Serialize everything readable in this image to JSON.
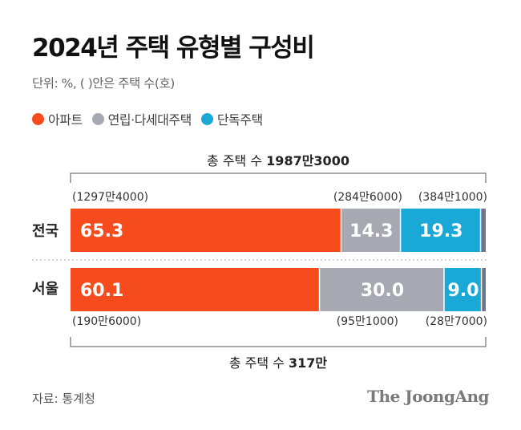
{
  "header": {
    "title": "2024년 주택 유형별 구성비",
    "unit": "단위: %, (  )안은 주택 수(호)"
  },
  "legend": [
    {
      "label": "아파트",
      "color": "#f64b1c"
    },
    {
      "label": "연립·다세대주택",
      "color": "#a7a9b2"
    },
    {
      "label": "단독주택",
      "color": "#1aa9d6"
    }
  ],
  "chart_data": {
    "type": "bar",
    "stacked": true,
    "orientation": "horizontal",
    "title": "2024년 주택 유형별 구성비",
    "unit_note": "단위: %, (  )안은 주택 수(호)",
    "xlim": [
      0,
      100
    ],
    "categories": [
      "전국",
      "서울"
    ],
    "series": [
      {
        "name": "아파트",
        "color": "#f64b1c",
        "values": [
          65.3,
          60.1
        ],
        "counts": [
          "(1297만4000)",
          "(190만6000)"
        ]
      },
      {
        "name": "연립·다세대주택",
        "color": "#a7a9b2",
        "values": [
          14.3,
          30.0
        ],
        "counts": [
          "(284만6000)",
          "(95만1000)"
        ]
      },
      {
        "name": "단독주택",
        "color": "#1aa9d6",
        "values": [
          19.3,
          9.0
        ],
        "counts": [
          "(384만1000)",
          "(28만7000)"
        ]
      }
    ],
    "remainder_color": "#6d7689",
    "value_labels": [
      [
        "65.3",
        "14.3",
        "19.3"
      ],
      [
        "60.1",
        "30.0",
        "9.0"
      ]
    ],
    "totals": [
      {
        "prefix": "총 주택 수 ",
        "value": "1987만3000"
      },
      {
        "prefix": "총 주택 수 ",
        "value": "317만"
      }
    ]
  },
  "footer": {
    "source": "자료: 통계청",
    "logo": "The JoongAng"
  }
}
